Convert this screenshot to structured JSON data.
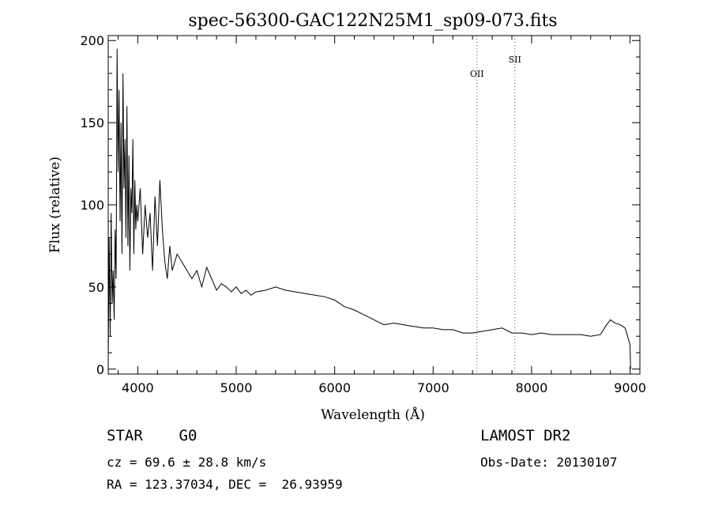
{
  "chart_data": {
    "type": "line",
    "title": "spec-56300-GAC122N25M1_sp09-073.fits",
    "xlabel": "Wavelength (Å)",
    "ylabel": "Flux (relative)",
    "xlim": [
      3700,
      9100
    ],
    "ylim": [
      -3,
      203
    ],
    "xticks": [
      4000,
      5000,
      6000,
      7000,
      8000,
      9000
    ],
    "yticks": [
      0,
      50,
      100,
      150,
      200
    ],
    "lines": [
      {
        "label": "OII",
        "x": 7445
      },
      {
        "label": "SII",
        "x": 7830
      }
    ],
    "series": [
      {
        "x": [
          3700,
          3710,
          3720,
          3730,
          3740,
          3750,
          3760,
          3770,
          3780,
          3790,
          3800,
          3810,
          3820,
          3830,
          3840,
          3850,
          3860,
          3870,
          3880,
          3890,
          3900,
          3910,
          3920,
          3930,
          3940,
          3950,
          3960,
          3970,
          3980,
          3990,
          4000,
          4025,
          4050,
          4075,
          4100,
          4125,
          4150,
          4175,
          4200,
          4225,
          4250,
          4275,
          4300,
          4325,
          4350,
          4400,
          4450,
          4500,
          4550,
          4600,
          4650,
          4700,
          4750,
          4800,
          4850,
          4900,
          4950,
          5000,
          5050,
          5100,
          5150,
          5200,
          5300,
          5400,
          5500,
          5600,
          5700,
          5800,
          5900,
          6000,
          6100,
          6200,
          6300,
          6400,
          6500,
          6600,
          6700,
          6800,
          6900,
          7000,
          7100,
          7200,
          7300,
          7400,
          7500,
          7600,
          7700,
          7800,
          7900,
          8000,
          8100,
          8200,
          8300,
          8400,
          8500,
          8600,
          8700,
          8750,
          8800,
          8850,
          8900,
          8950,
          9000,
          9005
        ],
        "y": [
          5,
          80,
          20,
          95,
          40,
          60,
          30,
          85,
          55,
          195,
          120,
          170,
          90,
          150,
          70,
          180,
          110,
          140,
          80,
          160,
          75,
          130,
          60,
          110,
          95,
          140,
          70,
          115,
          85,
          100,
          90,
          110,
          70,
          100,
          80,
          95,
          60,
          105,
          75,
          115,
          85,
          65,
          55,
          75,
          60,
          70,
          65,
          60,
          55,
          60,
          50,
          62,
          55,
          48,
          52,
          50,
          47,
          50,
          46,
          48,
          45,
          47,
          48,
          50,
          48,
          47,
          46,
          45,
          44,
          42,
          38,
          36,
          33,
          30,
          27,
          28,
          27,
          26,
          25,
          25,
          24,
          24,
          22,
          22,
          23,
          24,
          25,
          22,
          22,
          21,
          22,
          21,
          21,
          21,
          21,
          20,
          21,
          26,
          30,
          28,
          27,
          25,
          15,
          0
        ]
      }
    ]
  },
  "footer": {
    "classification": "STAR    G0",
    "cz": "cz = 69.6 ± 28.8 km/s",
    "coords": "RA = 123.37034, DEC =  26.93959",
    "survey": "LAMOST DR2",
    "obs_date": "Obs-Date: 20130107"
  }
}
